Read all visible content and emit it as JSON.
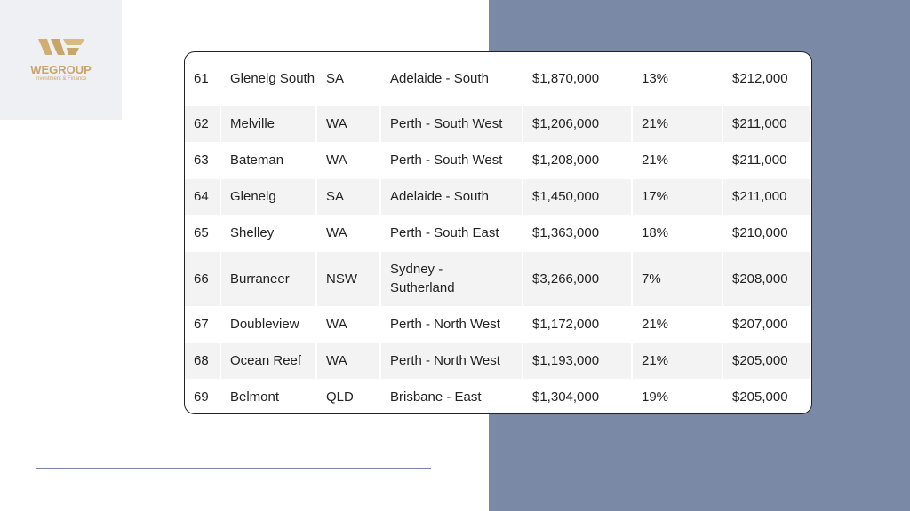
{
  "logo": {
    "name": "WEGROUP",
    "tagline": "Investment & Finance"
  },
  "table": {
    "rows": [
      [
        "61",
        "Glenelg South",
        "SA",
        "Adelaide - South",
        "$1,870,000",
        "13%",
        "$212,000"
      ],
      [
        "62",
        "Melville",
        "WA",
        "Perth - South West",
        "$1,206,000",
        "21%",
        "$211,000"
      ],
      [
        "63",
        "Bateman",
        "WA",
        "Perth - South West",
        "$1,208,000",
        "21%",
        "$211,000"
      ],
      [
        "64",
        "Glenelg",
        "SA",
        "Adelaide - South",
        "$1,450,000",
        "17%",
        "$211,000"
      ],
      [
        "65",
        "Shelley",
        "WA",
        "Perth - South East",
        "$1,363,000",
        "18%",
        "$210,000"
      ],
      [
        "66",
        "Burraneer",
        "NSW",
        "Sydney - Sutherland",
        "$3,266,000",
        "7%",
        "$208,000"
      ],
      [
        "67",
        "Doubleview",
        "WA",
        "Perth - North West",
        "$1,172,000",
        "21%",
        "$207,000"
      ],
      [
        "68",
        "Ocean Reef",
        "WA",
        "Perth - North West",
        "$1,193,000",
        "21%",
        "$205,000"
      ],
      [
        "69",
        "Belmont",
        "QLD",
        "Brisbane - East",
        "$1,304,000",
        "19%",
        "$205,000"
      ]
    ]
  }
}
